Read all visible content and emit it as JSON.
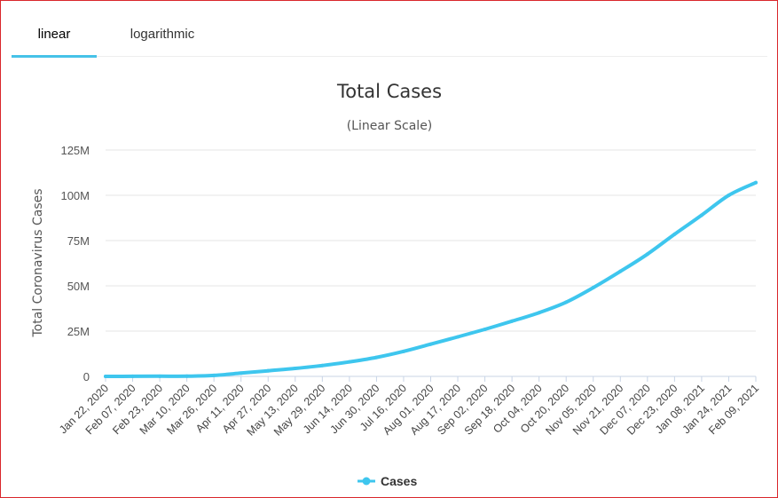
{
  "tabs": [
    {
      "label": "linear",
      "active": true
    },
    {
      "label": "logarithmic",
      "active": false
    }
  ],
  "colors": {
    "accent": "#46c2e8",
    "series": "#3ec6ee",
    "frame": "#d9262c",
    "grid": "#e6e6e6"
  },
  "chart_data": {
    "type": "line",
    "title": "Total Cases",
    "subtitle": "(Linear Scale)",
    "xlabel": "",
    "ylabel": "Total Coronavirus Cases",
    "ylim": [
      0,
      125000000
    ],
    "yticks": [
      {
        "value": 0,
        "label": "0"
      },
      {
        "value": 25000000,
        "label": "25M"
      },
      {
        "value": 50000000,
        "label": "50M"
      },
      {
        "value": 75000000,
        "label": "75M"
      },
      {
        "value": 100000000,
        "label": "100M"
      },
      {
        "value": 125000000,
        "label": "125M"
      }
    ],
    "xlim": [
      "2020-01-22",
      "2021-02-09"
    ],
    "xticks": [
      {
        "date": "2020-01-22",
        "label": "Jan 22, 2020"
      },
      {
        "date": "2020-02-07",
        "label": "Feb 07, 2020"
      },
      {
        "date": "2020-02-23",
        "label": "Feb 23, 2020"
      },
      {
        "date": "2020-03-10",
        "label": "Mar 10, 2020"
      },
      {
        "date": "2020-03-26",
        "label": "Mar 26, 2020"
      },
      {
        "date": "2020-04-11",
        "label": "Apr 11, 2020"
      },
      {
        "date": "2020-04-27",
        "label": "Apr 27, 2020"
      },
      {
        "date": "2020-05-13",
        "label": "May 13, 2020"
      },
      {
        "date": "2020-05-29",
        "label": "May 29, 2020"
      },
      {
        "date": "2020-06-14",
        "label": "Jun 14, 2020"
      },
      {
        "date": "2020-06-30",
        "label": "Jun 30, 2020"
      },
      {
        "date": "2020-07-16",
        "label": "Jul 16, 2020"
      },
      {
        "date": "2020-08-01",
        "label": "Aug 01, 2020"
      },
      {
        "date": "2020-08-17",
        "label": "Aug 17, 2020"
      },
      {
        "date": "2020-09-02",
        "label": "Sep 02, 2020"
      },
      {
        "date": "2020-09-18",
        "label": "Sep 18, 2020"
      },
      {
        "date": "2020-10-04",
        "label": "Oct 04, 2020"
      },
      {
        "date": "2020-10-20",
        "label": "Oct 20, 2020"
      },
      {
        "date": "2020-11-05",
        "label": "Nov 05, 2020"
      },
      {
        "date": "2020-11-21",
        "label": "Nov 21, 2020"
      },
      {
        "date": "2020-12-07",
        "label": "Dec 07, 2020"
      },
      {
        "date": "2020-12-23",
        "label": "Dec 23, 2020"
      },
      {
        "date": "2021-01-08",
        "label": "Jan 08, 2021"
      },
      {
        "date": "2021-01-24",
        "label": "Jan 24, 2021"
      },
      {
        "date": "2021-02-09",
        "label": "Feb 09, 2021"
      }
    ],
    "grid": true,
    "legend_position": "bottom-center",
    "series": [
      {
        "name": "Cases",
        "points": [
          {
            "x": "2020-01-22",
            "y": 600
          },
          {
            "x": "2020-02-07",
            "y": 34000
          },
          {
            "x": "2020-02-23",
            "y": 79000
          },
          {
            "x": "2020-03-10",
            "y": 120000
          },
          {
            "x": "2020-03-26",
            "y": 530000
          },
          {
            "x": "2020-04-11",
            "y": 1800000
          },
          {
            "x": "2020-04-27",
            "y": 3100000
          },
          {
            "x": "2020-05-13",
            "y": 4400000
          },
          {
            "x": "2020-05-29",
            "y": 6000000
          },
          {
            "x": "2020-06-14",
            "y": 8000000
          },
          {
            "x": "2020-06-30",
            "y": 10500000
          },
          {
            "x": "2020-07-16",
            "y": 13800000
          },
          {
            "x": "2020-08-01",
            "y": 17800000
          },
          {
            "x": "2020-08-17",
            "y": 21800000
          },
          {
            "x": "2020-09-02",
            "y": 26000000
          },
          {
            "x": "2020-09-18",
            "y": 30500000
          },
          {
            "x": "2020-10-04",
            "y": 35200000
          },
          {
            "x": "2020-10-20",
            "y": 41000000
          },
          {
            "x": "2020-11-05",
            "y": 49000000
          },
          {
            "x": "2020-11-21",
            "y": 58000000
          },
          {
            "x": "2020-12-07",
            "y": 67500000
          },
          {
            "x": "2020-12-23",
            "y": 78500000
          },
          {
            "x": "2021-01-08",
            "y": 89000000
          },
          {
            "x": "2021-01-24",
            "y": 100000000
          },
          {
            "x": "2021-02-09",
            "y": 107000000
          }
        ]
      }
    ]
  }
}
